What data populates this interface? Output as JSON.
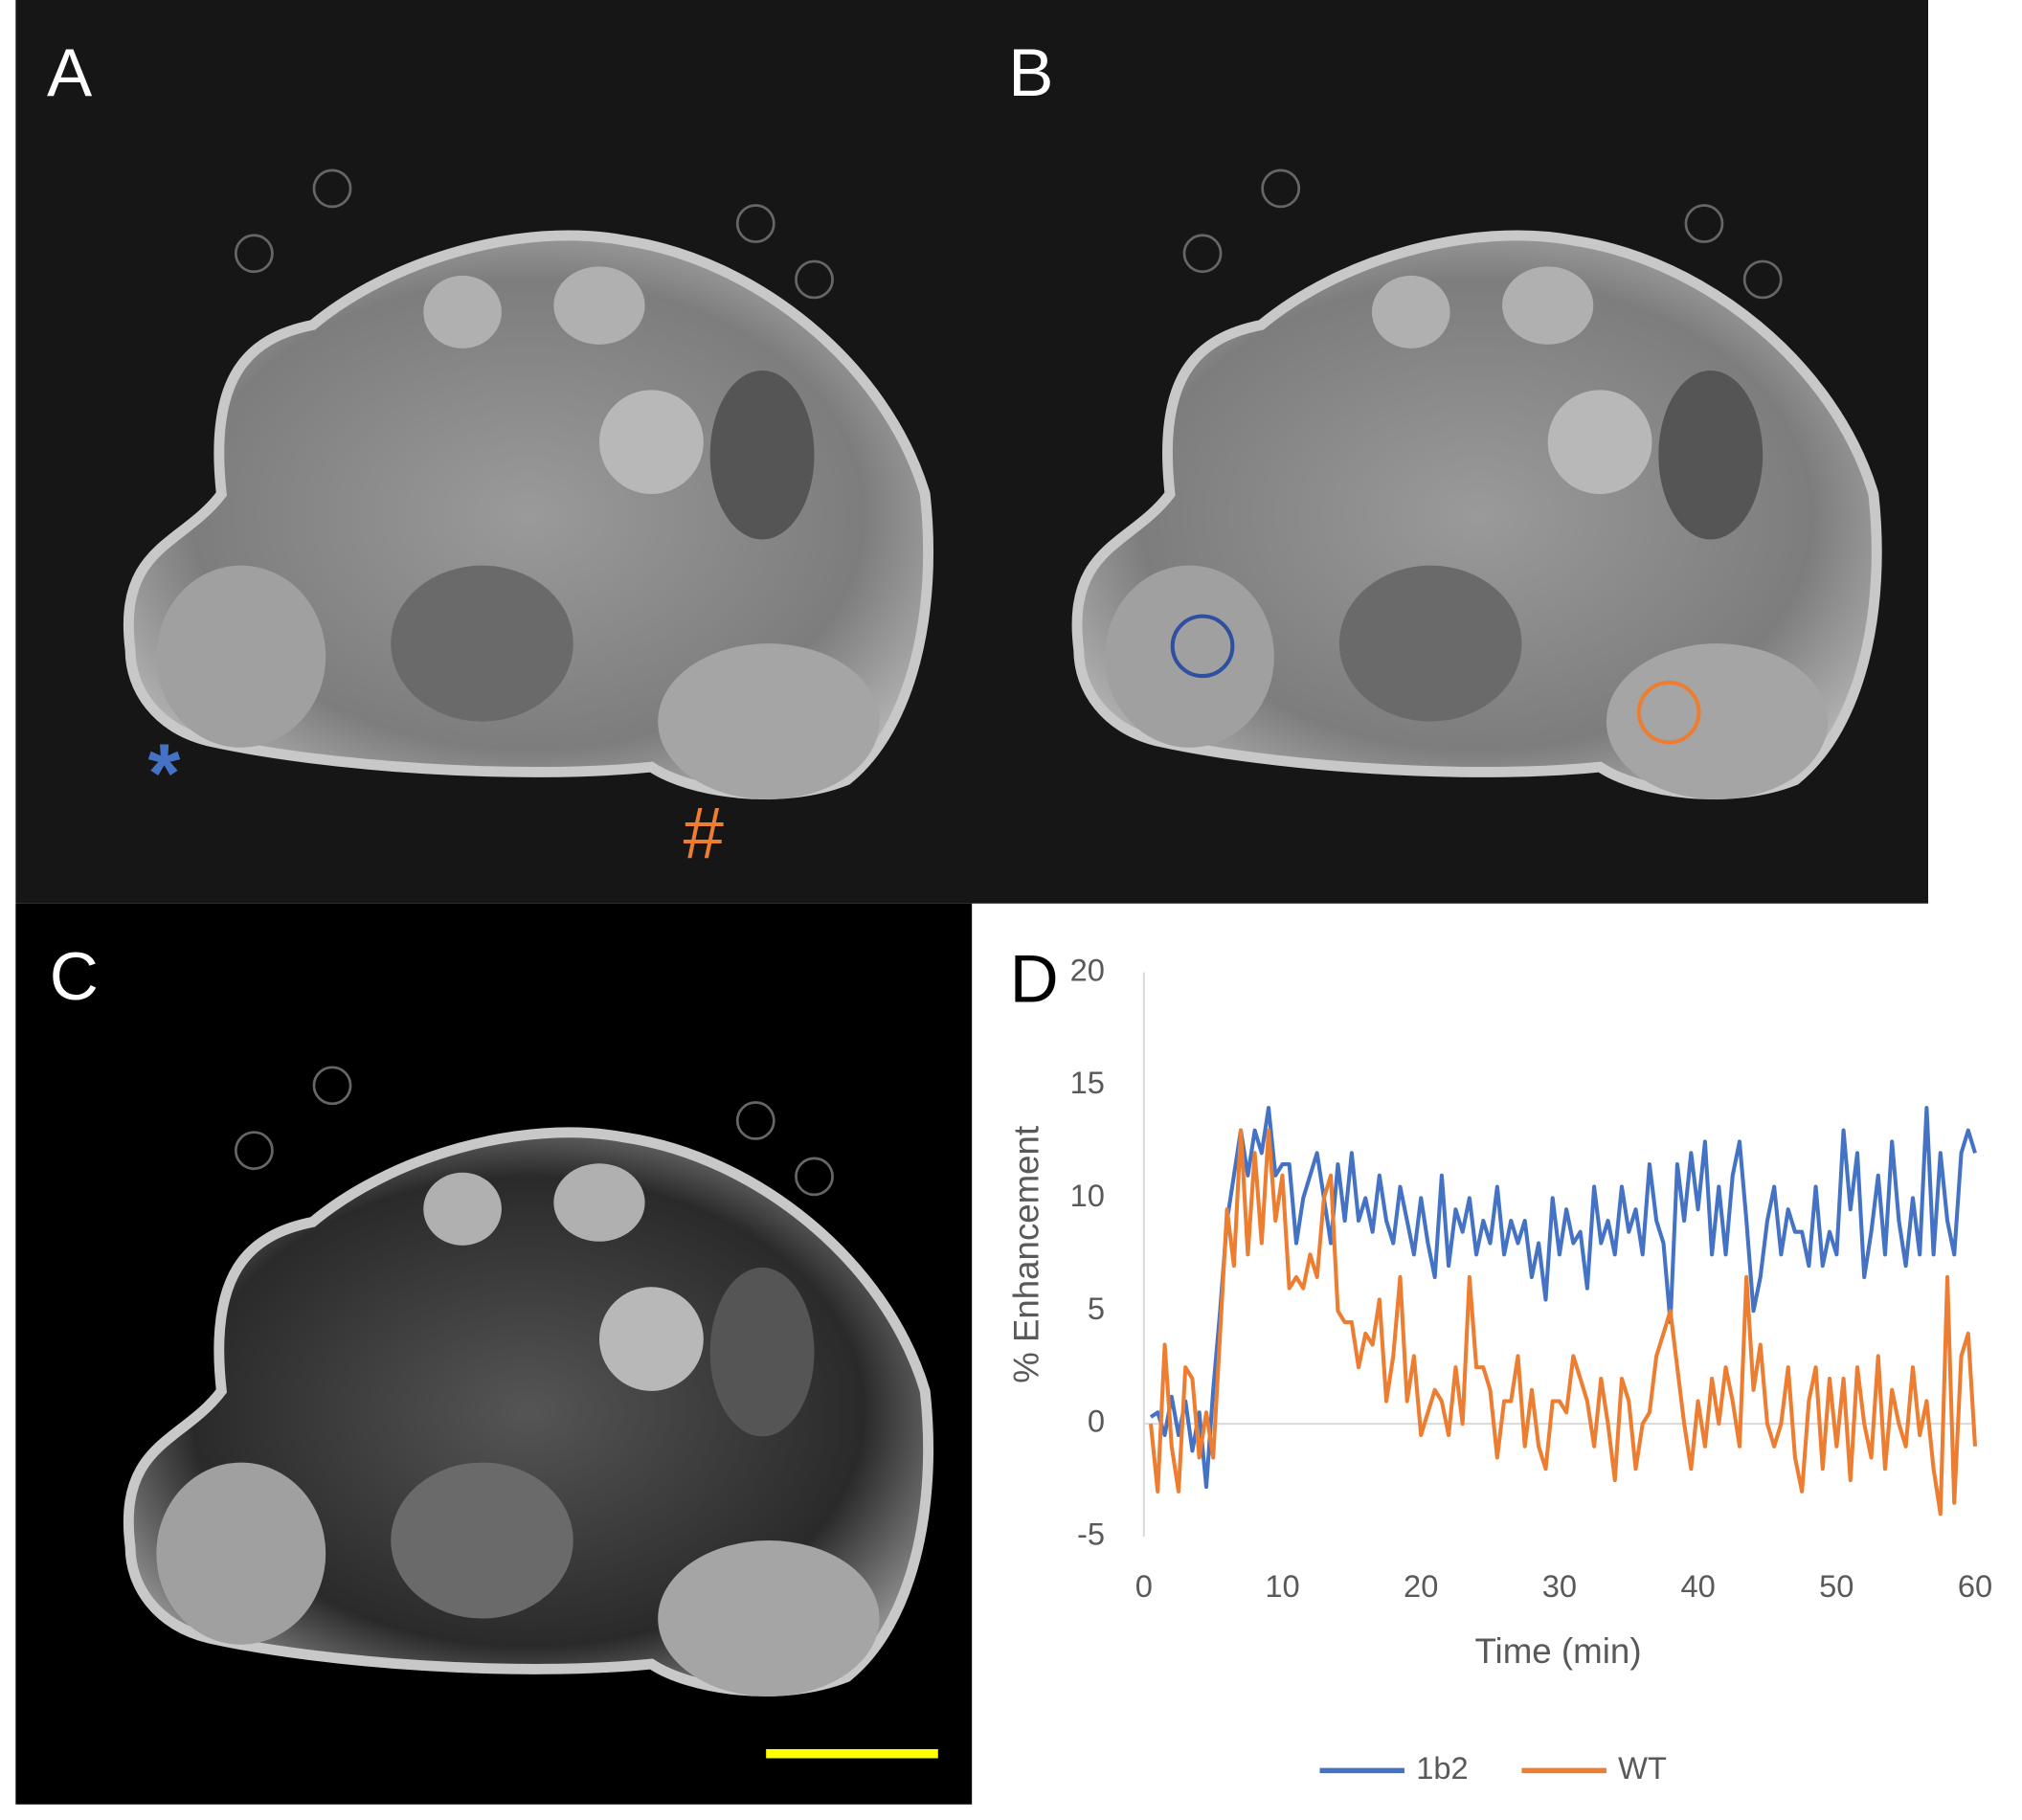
{
  "panels": {
    "A": "A",
    "B": "B",
    "C": "C",
    "D": "D"
  },
  "annotations": {
    "star": "*",
    "hash": "#"
  },
  "chart_data": {
    "type": "line",
    "xlabel": "Time (min)",
    "ylabel": "% Enhancement",
    "x": [
      0.5,
      1,
      1.5,
      2,
      2.5,
      3,
      3.5,
      4,
      4.5,
      5,
      5.5,
      6,
      6.5,
      7,
      7.5,
      8,
      8.5,
      9,
      9.5,
      10,
      10.5,
      11,
      11.5,
      12,
      12.5,
      13,
      13.5,
      14,
      14.5,
      15,
      15.5,
      16,
      16.5,
      17,
      17.5,
      18,
      18.5,
      19,
      19.5,
      20,
      20.5,
      21,
      21.5,
      22,
      22.5,
      23,
      23.5,
      24,
      24.5,
      25,
      25.5,
      26,
      26.5,
      27,
      27.5,
      28,
      28.5,
      29,
      29.5,
      30,
      30.5,
      31,
      31.5,
      32,
      32.5,
      33,
      33.5,
      34,
      34.5,
      35,
      35.5,
      36,
      36.5,
      37,
      37.5,
      38,
      38.5,
      39,
      39.5,
      40,
      40.5,
      41,
      41.5,
      42,
      42.5,
      43,
      43.5,
      44,
      44.5,
      45,
      45.5,
      46,
      46.5,
      47,
      47.5,
      48,
      48.5,
      49,
      49.5,
      50,
      50.5,
      51,
      51.5,
      52,
      52.5,
      53,
      53.5,
      54,
      54.5,
      55,
      55.5,
      56,
      56.5,
      57,
      57.5,
      58,
      58.5,
      59,
      59.5,
      60
    ],
    "series": [
      {
        "name": "1b2",
        "color": "#4472c4",
        "values": [
          0.3,
          0.5,
          -0.5,
          1.2,
          -0.5,
          1.0,
          -1.2,
          0.5,
          -2.8,
          1.5,
          5,
          9,
          11,
          13,
          11,
          13,
          12,
          14,
          11,
          11.5,
          11.5,
          8,
          10,
          11,
          12,
          10,
          8,
          11.5,
          9,
          12,
          9,
          10,
          8.5,
          11,
          9,
          8,
          10.5,
          9,
          7.5,
          10,
          8,
          6.5,
          11,
          7,
          9.5,
          8.5,
          10,
          7.5,
          9,
          8,
          10.5,
          7.5,
          9,
          8,
          9,
          6.5,
          8,
          5.5,
          10,
          7.5,
          9.5,
          8,
          8.5,
          6,
          10.5,
          8,
          9,
          7.5,
          10.5,
          8.5,
          9.5,
          7.5,
          11.5,
          9,
          8,
          4.5,
          11.5,
          9,
          12,
          9.5,
          12.5,
          7.5,
          10.5,
          7.5,
          11,
          12.5,
          9,
          5,
          6.5,
          9,
          10.5,
          7.5,
          9.5,
          8.5,
          8.5,
          7,
          10.5,
          7,
          8.5,
          7.5,
          13,
          9.5,
          12,
          6.5,
          8.5,
          11,
          7.5,
          12.5,
          9,
          7,
          10,
          7.5,
          14,
          7.5,
          12,
          9,
          7.5,
          12,
          13,
          12
        ]
      },
      {
        "name": "WT",
        "color": "#ed7d31",
        "values": [
          0,
          -3,
          3.5,
          -1,
          -3,
          2.5,
          2,
          -1.5,
          0.5,
          -1.5,
          4,
          9.5,
          7,
          13,
          7.5,
          12,
          8,
          13,
          9,
          11,
          6,
          6.5,
          6,
          7.5,
          6.5,
          10,
          11,
          5,
          4.5,
          4.5,
          2.5,
          4,
          3.5,
          5.5,
          1,
          3,
          6.5,
          1,
          3,
          -0.5,
          0.5,
          1.5,
          1,
          -0.5,
          2.5,
          0,
          6.5,
          2.5,
          2.5,
          1.5,
          -1.5,
          1,
          1,
          3,
          -1,
          1.5,
          -1,
          -2,
          1,
          1,
          0.5,
          3,
          2,
          1,
          -1,
          2,
          0,
          -2.5,
          2,
          1,
          -2,
          0,
          0.5,
          3,
          4,
          5,
          2.5,
          0,
          -2,
          1,
          -1,
          2,
          0,
          2.5,
          1,
          -1,
          6.5,
          1.5,
          3.5,
          0,
          -1,
          0,
          2.5,
          -1.5,
          -3,
          1,
          2.5,
          -2,
          2,
          -1,
          2,
          -2.5,
          2.5,
          0,
          -1.5,
          3,
          -2,
          1.5,
          0,
          -1,
          2.5,
          -0.5,
          1,
          -2,
          -4,
          6.5,
          -3.5,
          3,
          4,
          -1
        ]
      }
    ],
    "xlim": [
      0,
      60
    ],
    "ylim": [
      -5,
      20
    ],
    "xticks": [
      0,
      10,
      20,
      30,
      40,
      50,
      60
    ],
    "yticks": [
      -5,
      0,
      5,
      10,
      15,
      20
    ],
    "legend": "bottom"
  }
}
